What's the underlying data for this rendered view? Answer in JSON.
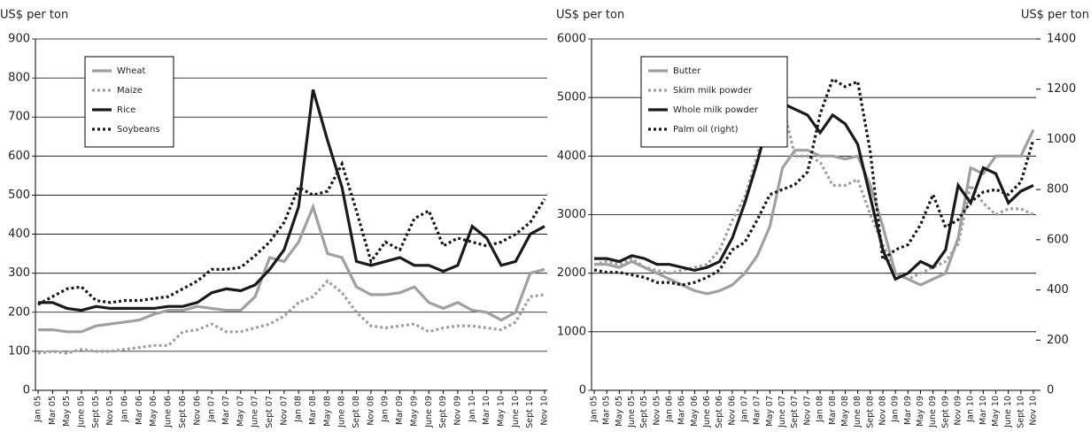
{
  "chart_data": [
    {
      "type": "line",
      "ylabel": "US$ per ton",
      "categories": [
        "Jan 05",
        "Mar 05",
        "May 05",
        "June 05",
        "Sept 05",
        "Nov 05",
        "Jan 06",
        "Mar 06",
        "May 06",
        "June 06",
        "Sept 06",
        "Nov 06",
        "Jan 07",
        "Mar 07",
        "May 07",
        "June 07",
        "Sept 07",
        "Nov 07",
        "Jan 08",
        "Mar 08",
        "May 08",
        "June 08",
        "Sept 08",
        "Nov 08",
        "Jan 09",
        "Mar 09",
        "May 09",
        "June 09",
        "Sept 09",
        "Nov 09",
        "Jan 10",
        "Mar 10",
        "May 10",
        "June 10",
        "Sept 10",
        "Nov 10"
      ],
      "ylim": [
        0,
        900
      ],
      "yticks": [
        0,
        100,
        200,
        300,
        400,
        500,
        600,
        700,
        800,
        900
      ],
      "grid": true,
      "legend": "upper left",
      "series": [
        {
          "name": "Wheat",
          "color": "#a0a0a0",
          "line_style": "solid",
          "values": [
            155,
            155,
            150,
            150,
            165,
            170,
            175,
            180,
            195,
            205,
            205,
            215,
            210,
            205,
            205,
            240,
            340,
            330,
            380,
            470,
            350,
            340,
            265,
            245,
            245,
            250,
            265,
            225,
            210,
            225,
            205,
            200,
            180,
            200,
            300,
            310
          ]
        },
        {
          "name": "Maize",
          "color": "#a0a0a0",
          "line_style": "dotted",
          "values": [
            95,
            100,
            95,
            105,
            100,
            100,
            105,
            110,
            115,
            115,
            150,
            155,
            170,
            150,
            150,
            160,
            170,
            190,
            225,
            240,
            280,
            250,
            200,
            165,
            160,
            165,
            170,
            150,
            160,
            165,
            165,
            160,
            155,
            175,
            240,
            245
          ]
        },
        {
          "name": "Rice",
          "color": "#1a1a1a",
          "line_style": "solid",
          "values": [
            225,
            225,
            210,
            205,
            215,
            210,
            210,
            210,
            210,
            215,
            215,
            225,
            250,
            260,
            255,
            270,
            310,
            360,
            470,
            770,
            640,
            520,
            330,
            320,
            330,
            340,
            320,
            320,
            305,
            320,
            420,
            390,
            320,
            330,
            400,
            420
          ]
        },
        {
          "name": "Soybeans",
          "color": "#1a1a1a",
          "line_style": "dotted",
          "values": [
            220,
            240,
            260,
            265,
            230,
            225,
            230,
            230,
            235,
            240,
            260,
            280,
            310,
            310,
            315,
            345,
            380,
            430,
            520,
            500,
            510,
            580,
            460,
            330,
            380,
            360,
            440,
            460,
            370,
            390,
            380,
            370,
            380,
            400,
            430,
            490
          ]
        }
      ]
    },
    {
      "type": "line",
      "ylabel": "US$ per ton",
      "y2label": "US$ per ton",
      "categories": [
        "Jan 05",
        "Mar 05",
        "May 05",
        "June 05",
        "Sept 05",
        "Nov 05",
        "Jan 06",
        "Mar 06",
        "May 06",
        "June 06",
        "Sept 06",
        "Nov 06",
        "Jan 07",
        "Mar 07",
        "May 07",
        "June 07",
        "Sept 07",
        "Nov 07",
        "Jan 08",
        "Mar 08",
        "May 08",
        "June 08",
        "Sept 08",
        "Nov 08",
        "Jan 09",
        "Mar 09",
        "May 09",
        "June 09",
        "Sept 09",
        "Nov 09",
        "Jan 10",
        "Mar 10",
        "May 10",
        "June 10",
        "Sept 10",
        "Nov 10"
      ],
      "ylim": [
        0,
        6000
      ],
      "yticks": [
        0,
        1000,
        2000,
        3000,
        4000,
        5000,
        6000
      ],
      "y2lim": [
        0,
        1400
      ],
      "y2ticks": [
        0,
        200,
        400,
        600,
        800,
        1000,
        1200,
        1400
      ],
      "grid": true,
      "legend": "upper left",
      "series": [
        {
          "name": "Butter",
          "color": "#a0a0a0",
          "line_style": "solid",
          "values": [
            2150,
            2150,
            2100,
            2200,
            2100,
            2000,
            1900,
            1800,
            1700,
            1650,
            1700,
            1800,
            2000,
            2300,
            2800,
            3800,
            4100,
            4100,
            4000,
            4000,
            3950,
            4000,
            3500,
            2800,
            2000,
            1900,
            1800,
            1900,
            2000,
            2600,
            3800,
            3700,
            4000,
            4000,
            4000,
            4450
          ]
        },
        {
          "name": "Skim milk powder",
          "color": "#a0a0a0",
          "line_style": "dotted",
          "values": [
            2150,
            2200,
            2150,
            2250,
            2100,
            2050,
            2000,
            2050,
            2100,
            2150,
            2400,
            2900,
            3300,
            4000,
            5100,
            4900,
            4000,
            4000,
            3900,
            3500,
            3500,
            3600,
            3000,
            2500,
            2000,
            1900,
            2000,
            2100,
            2200,
            2500,
            3500,
            3200,
            3000,
            3100,
            3100,
            3000
          ]
        },
        {
          "name": "Whole milk powder",
          "color": "#1a1a1a",
          "line_style": "solid",
          "values": [
            2250,
            2250,
            2200,
            2300,
            2250,
            2150,
            2150,
            2100,
            2050,
            2100,
            2200,
            2600,
            3200,
            3900,
            4700,
            4900,
            4800,
            4700,
            4400,
            4700,
            4550,
            4200,
            3300,
            2400,
            1900,
            2000,
            2200,
            2100,
            2400,
            3500,
            3200,
            3800,
            3700,
            3200,
            3400,
            3500
          ]
        },
        {
          "name": "Palm oil (right)",
          "color": "#1a1a1a",
          "line_style": "dotted",
          "axis": "y2",
          "values": [
            480,
            470,
            470,
            460,
            450,
            430,
            430,
            420,
            430,
            450,
            480,
            560,
            590,
            680,
            780,
            800,
            820,
            870,
            1100,
            1240,
            1210,
            1230,
            950,
            520,
            560,
            580,
            660,
            780,
            650,
            680,
            750,
            790,
            800,
            780,
            830,
            1000
          ]
        }
      ]
    }
  ]
}
